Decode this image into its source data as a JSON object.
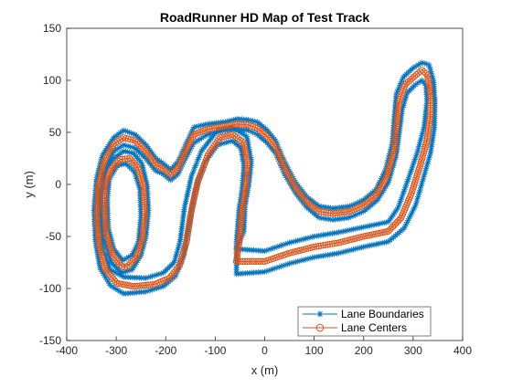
{
  "chart_data": {
    "type": "line",
    "title": "RoadRunner HD Map of Test Track",
    "xlabel": "x (m)",
    "ylabel": "y (m)",
    "xlim": [
      -400,
      400
    ],
    "ylim": [
      -150,
      150
    ],
    "xticks": [
      -400,
      -300,
      -200,
      -100,
      0,
      100,
      200,
      300,
      400
    ],
    "yticks": [
      -150,
      -100,
      -50,
      0,
      50,
      100,
      150
    ],
    "grid": false,
    "legend_position": "bottom-right",
    "series": [
      {
        "name": "Lane Boundaries",
        "color": "#0072BD",
        "marker": "asterisk",
        "lanes": [
          [
            [
              -290,
              -85
            ],
            [
              -310,
              -75
            ],
            [
              -323,
              -55
            ],
            [
              -330,
              -30
            ],
            [
              -330,
              -5
            ],
            [
              -323,
              12
            ],
            [
              -305,
              25
            ],
            [
              -285,
              32
            ],
            [
              -265,
              30
            ],
            [
              -248,
              20
            ],
            [
              -238,
              0
            ],
            [
              -235,
              -25
            ],
            [
              -240,
              -50
            ],
            [
              -250,
              -68
            ],
            [
              -268,
              -82
            ],
            [
              -290,
              -85
            ]
          ],
          [
            [
              -287,
              -73
            ],
            [
              -305,
              -62
            ],
            [
              -316,
              -42
            ],
            [
              -318,
              -15
            ],
            [
              -314,
              5
            ],
            [
              -298,
              18
            ],
            [
              -280,
              20
            ],
            [
              -263,
              12
            ],
            [
              -252,
              -5
            ],
            [
              -250,
              -30
            ],
            [
              -255,
              -55
            ],
            [
              -268,
              -68
            ],
            [
              -287,
              -73
            ]
          ],
          [
            [
              -57,
              -86
            ],
            [
              0,
              -84
            ],
            [
              50,
              -76
            ],
            [
              100,
              -70
            ],
            [
              150,
              -66
            ],
            [
              200,
              -60
            ],
            [
              250,
              -55
            ],
            [
              282,
              -42
            ],
            [
              305,
              -20
            ],
            [
              320,
              5
            ],
            [
              335,
              30
            ],
            [
              343,
              55
            ],
            [
              344,
              80
            ],
            [
              341,
              100
            ],
            [
              332,
              115
            ],
            [
              318,
              117
            ],
            [
              300,
              112
            ],
            [
              280,
              103
            ],
            [
              266,
              87
            ],
            [
              262,
              65
            ],
            [
              258,
              40
            ],
            [
              245,
              15
            ],
            [
              225,
              -5
            ],
            [
              200,
              -15
            ],
            [
              172,
              -21
            ],
            [
              138,
              -23
            ],
            [
              110,
              -21
            ],
            [
              85,
              -12
            ],
            [
              62,
              2
            ],
            [
              40,
              22
            ],
            [
              22,
              42
            ],
            [
              5,
              52
            ],
            [
              -15,
              60
            ],
            [
              -33,
              62
            ],
            [
              -55,
              63
            ],
            [
              -80,
              60
            ],
            [
              -115,
              58
            ],
            [
              -143,
              55
            ],
            [
              -160,
              38
            ],
            [
              -175,
              22
            ],
            [
              -190,
              14
            ],
            [
              -205,
              20
            ],
            [
              -220,
              25
            ],
            [
              -240,
              38
            ],
            [
              -262,
              48
            ],
            [
              -285,
              52
            ],
            [
              -305,
              45
            ],
            [
              -328,
              28
            ],
            [
              -340,
              5
            ],
            [
              -345,
              -25
            ],
            [
              -342,
              -55
            ],
            [
              -333,
              -80
            ],
            [
              -312,
              -97
            ],
            [
              -285,
              -105
            ],
            [
              -240,
              -103
            ],
            [
              -205,
              -98
            ],
            [
              -180,
              -88
            ],
            [
              -163,
              -68
            ],
            [
              -152,
              -35
            ],
            [
              -140,
              -5
            ],
            [
              -120,
              22
            ],
            [
              -95,
              38
            ],
            [
              -65,
              42
            ],
            [
              -48,
              35
            ],
            [
              -42,
              18
            ],
            [
              -45,
              -2
            ],
            [
              -52,
              -25
            ],
            [
              -57,
              -55
            ],
            [
              -57,
              -86
            ]
          ],
          [
            [
              -57,
              -62
            ],
            [
              0,
              -64
            ],
            [
              50,
              -56
            ],
            [
              100,
              -50
            ],
            [
              150,
              -46
            ],
            [
              200,
              -41
            ],
            [
              250,
              -36
            ],
            [
              270,
              -22
            ],
            [
              290,
              5
            ],
            [
              308,
              30
            ],
            [
              322,
              55
            ],
            [
              328,
              80
            ],
            [
              326,
              95
            ],
            [
              318,
              100
            ],
            [
              305,
              96
            ],
            [
              288,
              88
            ],
            [
              278,
              72
            ],
            [
              272,
              50
            ],
            [
              266,
              28
            ],
            [
              250,
              2
            ],
            [
              228,
              -15
            ],
            [
              200,
              -26
            ],
            [
              170,
              -32
            ],
            [
              138,
              -34
            ],
            [
              110,
              -32
            ],
            [
              85,
              -22
            ],
            [
              62,
              -8
            ],
            [
              40,
              10
            ],
            [
              22,
              30
            ],
            [
              5,
              40
            ],
            [
              -15,
              48
            ],
            [
              -33,
              52
            ],
            [
              -55,
              53
            ],
            [
              -80,
              52
            ],
            [
              -115,
              48
            ],
            [
              -143,
              40
            ],
            [
              -160,
              25
            ],
            [
              -175,
              10
            ],
            [
              -190,
              4
            ],
            [
              -205,
              10
            ],
            [
              -220,
              13
            ],
            [
              -240,
              25
            ],
            [
              -262,
              35
            ],
            [
              -285,
              38
            ],
            [
              -305,
              32
            ],
            [
              -322,
              15
            ],
            [
              -332,
              -10
            ],
            [
              -333,
              -38
            ],
            [
              -327,
              -62
            ],
            [
              -312,
              -82
            ],
            [
              -285,
              -89
            ],
            [
              -240,
              -90
            ],
            [
              -205,
              -85
            ],
            [
              -183,
              -75
            ],
            [
              -171,
              -55
            ],
            [
              -162,
              -22
            ],
            [
              -148,
              8
            ],
            [
              -128,
              32
            ],
            [
              -95,
              52
            ],
            [
              -65,
              55
            ],
            [
              -36,
              46
            ],
            [
              -27,
              22
            ],
            [
              -32,
              0
            ],
            [
              -40,
              -22
            ],
            [
              -42,
              -45
            ],
            [
              -57,
              -62
            ]
          ]
        ]
      },
      {
        "name": "Lane Centers",
        "color": "#D95319",
        "marker": "circle",
        "lanes": [
          [
            [
              -288,
              -79
            ],
            [
              -307,
              -68
            ],
            [
              -320,
              -48
            ],
            [
              -324,
              -22
            ],
            [
              -322,
              0
            ],
            [
              -310,
              15
            ],
            [
              -292,
              24
            ],
            [
              -273,
              25
            ],
            [
              -256,
              16
            ],
            [
              -245,
              -2
            ],
            [
              -242,
              -28
            ],
            [
              -247,
              -52
            ],
            [
              -259,
              -70
            ],
            [
              -278,
              -79
            ],
            [
              -288,
              -79
            ]
          ],
          [
            [
              -57,
              -74
            ],
            [
              0,
              -74
            ],
            [
              50,
              -66
            ],
            [
              100,
              -60
            ],
            [
              150,
              -56
            ],
            [
              200,
              -50
            ],
            [
              250,
              -45
            ],
            [
              276,
              -32
            ],
            [
              297,
              -8
            ],
            [
              314,
              18
            ],
            [
              328,
              42
            ],
            [
              335,
              67
            ],
            [
              335,
              87
            ],
            [
              329,
              105
            ],
            [
              318,
              110
            ],
            [
              303,
              104
            ],
            [
              284,
              96
            ],
            [
              272,
              80
            ],
            [
              267,
              58
            ],
            [
              262,
              34
            ],
            [
              247,
              8
            ],
            [
              226,
              -10
            ],
            [
              200,
              -20
            ],
            [
              171,
              -26
            ],
            [
              138,
              -28
            ],
            [
              110,
              -26
            ],
            [
              85,
              -17
            ],
            [
              62,
              -3
            ],
            [
              40,
              16
            ],
            [
              22,
              36
            ],
            [
              5,
              46
            ],
            [
              -15,
              54
            ],
            [
              -33,
              57
            ],
            [
              -55,
              58
            ],
            [
              -80,
              56
            ],
            [
              -115,
              53
            ],
            [
              -143,
              48
            ],
            [
              -160,
              32
            ],
            [
              -175,
              16
            ],
            [
              -190,
              9
            ],
            [
              -205,
              15
            ],
            [
              -220,
              19
            ],
            [
              -240,
              32
            ],
            [
              -262,
              42
            ],
            [
              -285,
              45
            ],
            [
              -305,
              39
            ],
            [
              -325,
              22
            ],
            [
              -336,
              -2
            ],
            [
              -339,
              -31
            ],
            [
              -335,
              -58
            ],
            [
              -322,
              -82
            ],
            [
              -298,
              -95
            ],
            [
              -265,
              -98
            ],
            [
              -222,
              -96
            ],
            [
              -192,
              -90
            ],
            [
              -172,
              -78
            ],
            [
              -158,
              -55
            ],
            [
              -148,
              -25
            ],
            [
              -135,
              3
            ],
            [
              -114,
              29
            ],
            [
              -90,
              45
            ],
            [
              -65,
              48
            ],
            [
              -42,
              40
            ],
            [
              -35,
              20
            ],
            [
              -38,
              -2
            ],
            [
              -46,
              -25
            ],
            [
              -50,
              -50
            ],
            [
              -57,
              -74
            ]
          ]
        ]
      }
    ]
  },
  "legend": {
    "boundaries_label": "Lane Boundaries",
    "centers_label": "Lane Centers"
  }
}
